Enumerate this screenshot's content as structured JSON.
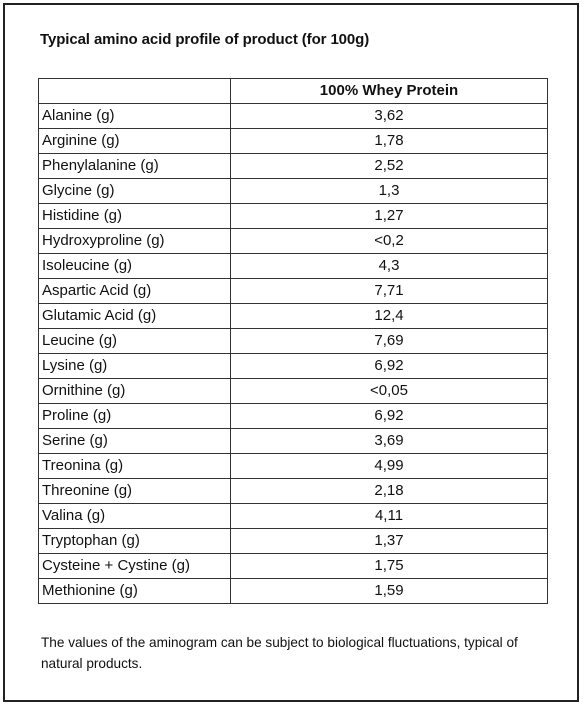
{
  "title": "Typical amino acid profile of product (for 100g)",
  "table": {
    "header_empty": "",
    "header_product": "100% Whey Protein",
    "rows": [
      {
        "name": "Alanine (g)",
        "value": "3,62"
      },
      {
        "name": "Arginine (g)",
        "value": "1,78"
      },
      {
        "name": "Phenylalanine (g)",
        "value": "2,52"
      },
      {
        "name": "Glycine (g)",
        "value": "1,3"
      },
      {
        "name": "Histidine (g)",
        "value": "1,27"
      },
      {
        "name": "Hydroxyproline (g)",
        "value": "<0,2"
      },
      {
        "name": "Isoleucine (g)",
        "value": "4,3"
      },
      {
        "name": "Aspartic Acid (g)",
        "value": "7,71"
      },
      {
        "name": "Glutamic Acid (g)",
        "value": "12,4"
      },
      {
        "name": "Leucine (g)",
        "value": "7,69"
      },
      {
        "name": "Lysine (g)",
        "value": "6,92"
      },
      {
        "name": "Ornithine (g)",
        "value": "<0,05"
      },
      {
        "name": "Proline (g)",
        "value": "6,92"
      },
      {
        "name": "Serine (g)",
        "value": "3,69"
      },
      {
        "name": "Treonina (g)",
        "value": "4,99"
      },
      {
        "name": "Threonine (g)",
        "value": "2,18"
      },
      {
        "name": "Valina (g)",
        "value": "4,11"
      },
      {
        "name": "Tryptophan (g)",
        "value": "1,37"
      },
      {
        "name": "Cysteine + Cystine (g)",
        "value": "1,75"
      },
      {
        "name": "Methionine (g)",
        "value": "1,59"
      }
    ]
  },
  "note": "The values of the aminogram can be subject to biological fluctuations, typical of natural products."
}
